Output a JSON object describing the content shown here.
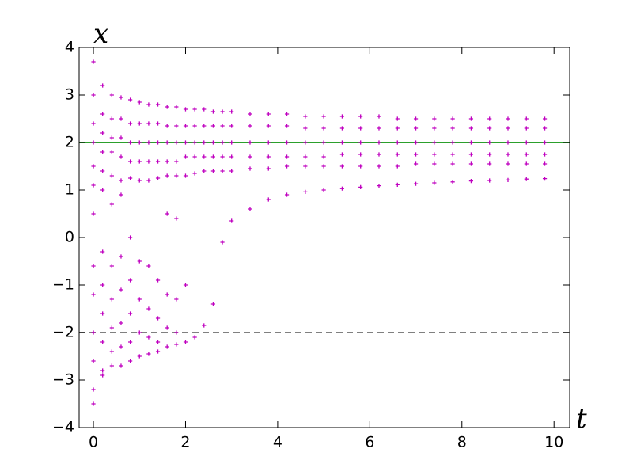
{
  "chart_data": {
    "type": "scatter",
    "x_label": "t",
    "y_label": "x",
    "xlim": [
      -0.31,
      10.34
    ],
    "ylim": [
      -4,
      4
    ],
    "xticks": [
      0,
      2,
      4,
      6,
      8,
      10
    ],
    "yticks": [
      {
        "value": -4,
        "label": "−4"
      },
      {
        "value": -3,
        "label": "−3"
      },
      {
        "value": -2,
        "label": "−2"
      },
      {
        "value": -1,
        "label": "−1"
      },
      0,
      1,
      2,
      3,
      4
    ],
    "grid": false,
    "marker": "+",
    "hlines": [
      {
        "y": 2,
        "color": "#2ca02c",
        "dash": false
      },
      {
        "y": -2,
        "color": "#808080",
        "dash": true
      }
    ],
    "series": [
      {
        "color": "#bf00bf",
        "x": [
          0,
          0,
          0,
          0,
          0,
          0,
          0,
          0,
          0,
          0,
          0,
          0,
          0,
          0.2,
          0.2,
          0.2,
          0.2,
          0.2,
          0.2,
          0.2,
          0.2,
          0.2,
          0.2,
          0.2,
          0.2,
          0.4,
          0.4,
          0.4,
          0.4,
          0.4,
          0.4,
          0.4,
          0.4,
          0.4,
          0.4,
          0.4,
          0.6,
          0.6,
          0.6,
          0.6,
          0.6,
          0.6,
          0.6,
          0.6,
          0.6,
          0.6,
          0.6,
          0.8,
          0.8,
          0.8,
          0.8,
          0.8,
          0.8,
          0.8,
          0.8,
          0.8,
          0.8,
          1.0,
          1.0,
          1.0,
          1.0,
          1.0,
          1.0,
          1.0,
          1.0,
          1.0,
          1.2,
          1.2,
          1.2,
          1.2,
          1.2,
          1.2,
          1.2,
          1.2,
          1.2,
          1.4,
          1.4,
          1.4,
          1.4,
          1.4,
          1.4,
          1.4,
          1.4,
          1.4,
          1.6,
          1.6,
          1.6,
          1.6,
          1.6,
          1.6,
          1.6,
          1.6,
          1.6,
          1.8,
          1.8,
          1.8,
          1.8,
          1.8,
          1.8,
          1.8,
          1.8,
          1.8,
          2.0,
          2.0,
          2.0,
          2.0,
          2.0,
          2.0,
          2.0,
          2.2,
          2.2,
          2.2,
          2.2,
          2.2,
          2.2,
          2.4,
          2.4,
          2.4,
          2.4,
          2.4,
          2.4,
          2.6,
          2.6,
          2.6,
          2.6,
          2.6,
          2.6,
          2.8,
          2.8,
          2.8,
          2.8,
          2.8,
          2.8,
          3.0,
          3.0,
          3.0,
          3.0,
          3.0,
          3.0,
          3.4,
          3.4,
          3.4,
          3.4,
          3.4,
          3.4,
          3.8,
          3.8,
          3.8,
          3.8,
          3.8,
          3.8,
          4.2,
          4.2,
          4.2,
          4.2,
          4.2,
          4.2,
          4.6,
          4.6,
          4.6,
          4.6,
          4.6,
          4.6,
          5.0,
          5.0,
          5.0,
          5.0,
          5.0,
          5.0,
          5.4,
          5.4,
          5.4,
          5.4,
          5.4,
          5.4,
          5.8,
          5.8,
          5.8,
          5.8,
          5.8,
          5.8,
          6.2,
          6.2,
          6.2,
          6.2,
          6.2,
          6.2,
          6.6,
          6.6,
          6.6,
          6.6,
          6.6,
          6.6,
          7.0,
          7.0,
          7.0,
          7.0,
          7.0,
          7.0,
          7.4,
          7.4,
          7.4,
          7.4,
          7.4,
          7.4,
          7.8,
          7.8,
          7.8,
          7.8,
          7.8,
          7.8,
          8.2,
          8.2,
          8.2,
          8.2,
          8.2,
          8.2,
          8.6,
          8.6,
          8.6,
          8.6,
          8.6,
          8.6,
          9.0,
          9.0,
          9.0,
          9.0,
          9.0,
          9.0,
          9.4,
          9.4,
          9.4,
          9.4,
          9.4,
          9.4,
          9.8,
          9.8,
          9.8,
          9.8,
          9.8,
          9.8
        ],
        "values": [
          3.7,
          3.0,
          2.4,
          2.0,
          1.5,
          1.1,
          0.5,
          -0.6,
          -1.2,
          -2.0,
          -2.6,
          -3.2,
          -3.5,
          3.2,
          2.6,
          2.2,
          1.8,
          1.4,
          1.0,
          -0.3,
          -1.0,
          -1.6,
          -2.2,
          -2.8,
          -2.9,
          3.0,
          2.5,
          2.1,
          1.8,
          1.3,
          0.7,
          -0.6,
          -1.3,
          -1.9,
          -2.4,
          -2.7,
          2.95,
          2.5,
          2.1,
          1.7,
          1.2,
          0.9,
          -0.4,
          -1.1,
          -1.8,
          -2.3,
          -2.7,
          2.9,
          2.4,
          2.0,
          1.6,
          1.25,
          0.0,
          -0.9,
          -1.6,
          -2.2,
          -2.6,
          2.85,
          2.4,
          2.0,
          1.6,
          1.2,
          -0.5,
          -1.3,
          -2.0,
          -2.5,
          2.8,
          2.4,
          2.0,
          1.6,
          1.2,
          -0.6,
          -1.5,
          -2.1,
          -2.45,
          2.8,
          2.4,
          2.0,
          1.6,
          1.25,
          -0.9,
          -1.7,
          -2.2,
          -2.4,
          2.75,
          2.35,
          2.0,
          1.6,
          1.3,
          0.5,
          -1.2,
          -1.9,
          -2.3,
          2.75,
          2.35,
          2.0,
          1.6,
          1.3,
          0.4,
          -1.3,
          -2.0,
          -2.25,
          2.7,
          2.35,
          2.0,
          1.7,
          1.3,
          -1.0,
          -2.2,
          2.7,
          2.35,
          2.0,
          1.7,
          1.35,
          -2.1,
          2.7,
          2.35,
          2.0,
          1.7,
          1.4,
          -1.85,
          2.65,
          2.35,
          2.0,
          1.7,
          1.4,
          -1.4,
          2.65,
          2.35,
          2.0,
          1.7,
          1.4,
          -0.1,
          2.65,
          2.35,
          2.0,
          1.7,
          1.4,
          0.35,
          2.6,
          2.35,
          2.0,
          1.7,
          1.45,
          0.6,
          2.6,
          2.35,
          2.0,
          1.7,
          1.45,
          0.8,
          2.6,
          2.35,
          2.0,
          1.7,
          1.5,
          0.9,
          2.55,
          2.3,
          2.0,
          1.7,
          1.5,
          0.96,
          2.55,
          2.3,
          2.0,
          1.7,
          1.5,
          1.0,
          2.55,
          2.3,
          2.0,
          1.75,
          1.5,
          1.03,
          2.55,
          2.3,
          2.0,
          1.75,
          1.5,
          1.06,
          2.55,
          2.3,
          2.0,
          1.75,
          1.5,
          1.09,
          2.5,
          2.3,
          2.0,
          1.75,
          1.5,
          1.11,
          2.5,
          2.3,
          2.0,
          1.75,
          1.55,
          1.13,
          2.5,
          2.3,
          2.0,
          1.75,
          1.55,
          1.15,
          2.5,
          2.3,
          2.0,
          1.75,
          1.55,
          1.17,
          2.5,
          2.3,
          2.0,
          1.75,
          1.55,
          1.19,
          2.5,
          2.3,
          2.0,
          1.75,
          1.55,
          1.2,
          2.5,
          2.3,
          2.0,
          1.75,
          1.55,
          1.21,
          2.5,
          2.3,
          2.0,
          1.75,
          1.55,
          1.23,
          2.5,
          2.3,
          2.0,
          1.75,
          1.55,
          1.24
        ]
      }
    ]
  }
}
